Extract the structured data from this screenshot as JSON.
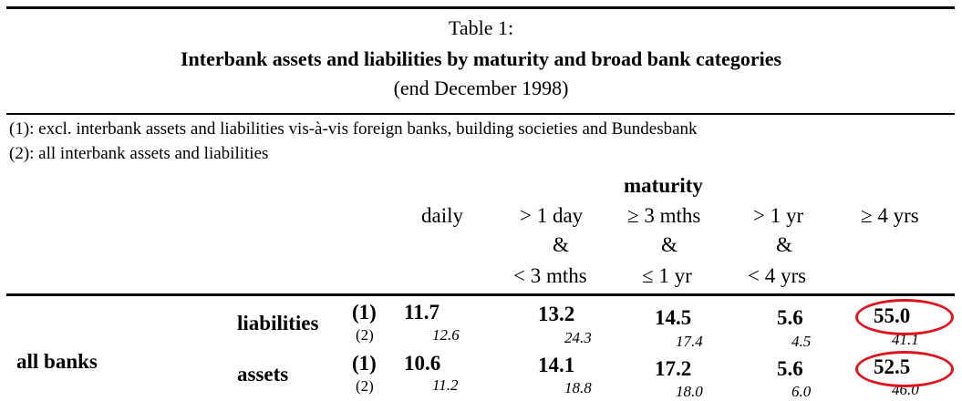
{
  "title": {
    "line1": "Table 1:",
    "line2": "Interbank assets and liabilities by maturity and broad bank categories",
    "line3": "(end December 1998)"
  },
  "notes": [
    "(1):   excl. interbank assets and liabilities vis-à-vis foreign banks, building societies and Bundesbank",
    "(2):   all interbank assets and liabilities"
  ],
  "header": {
    "group": "maturity",
    "columns": [
      {
        "lines": [
          "daily"
        ]
      },
      {
        "lines": [
          "> 1 day",
          "&",
          "< 3 mths"
        ]
      },
      {
        "lines": [
          "≥ 3 mths",
          "&",
          "≤ 1 yr"
        ]
      },
      {
        "lines": [
          "> 1 yr",
          "&",
          "< 4 yrs"
        ]
      },
      {
        "lines": [
          "≥ 4 yrs"
        ]
      }
    ]
  },
  "rows": {
    "category": "all banks",
    "liabilities": {
      "label": "liabilities",
      "m1": "(1)",
      "m2": "(2)",
      "v1": [
        "11.7",
        "13.2",
        "14.5",
        "5.6",
        "55.0"
      ],
      "v2": [
        "12.6",
        "24.3",
        "17.4",
        "4.5",
        "41.1"
      ]
    },
    "assets": {
      "label": "assets",
      "m1": "(1)",
      "m2": "(2)",
      "v1": [
        "10.6",
        "14.1",
        "17.2",
        "5.6",
        "52.5"
      ],
      "v2": [
        "11.2",
        "18.8",
        "18.0",
        "6.0",
        "46.0"
      ]
    }
  },
  "colors": {
    "highlight": "#e0141e",
    "rule": "#000000"
  }
}
